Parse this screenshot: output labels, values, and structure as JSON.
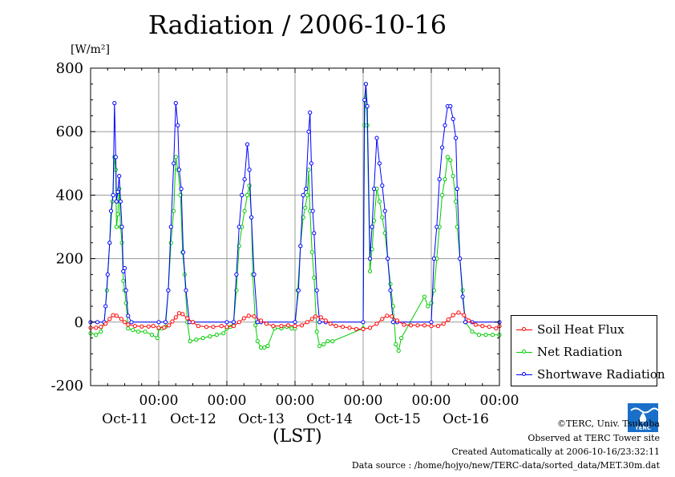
{
  "chart_data": {
    "type": "line",
    "title": "Radiation / 2006-10-16",
    "ylabel": "[W/m²]",
    "xlabel": "(LST)",
    "ylim": [
      -200,
      800
    ],
    "xlim": [
      0,
      6
    ],
    "y_ticks": [
      "800",
      "600",
      "400",
      "200",
      "0",
      "-200"
    ],
    "y_tick_values": [
      800,
      600,
      400,
      200,
      0,
      -200
    ],
    "x_ticks": [
      {
        "x": 1.0,
        "time": "00:00",
        "date": "Oct-11"
      },
      {
        "x": 2.0,
        "time": "00:00",
        "date": "Oct-12"
      },
      {
        "x": 3.0,
        "time": "00:00",
        "date": "Oct-13"
      },
      {
        "x": 4.0,
        "time": "00:00",
        "date": "Oct-14"
      },
      {
        "x": 5.0,
        "time": "00:00",
        "date": "Oct-15"
      },
      {
        "x": 6.0,
        "time": "00:00",
        "date": "Oct-16"
      }
    ],
    "grid": true,
    "legend_position": "bottom-right",
    "series": [
      {
        "name": "Soil Heat Flux",
        "color": "#ff0000",
        "data": [
          [
            0.0,
            -18
          ],
          [
            0.08,
            -18
          ],
          [
            0.15,
            -15
          ],
          [
            0.22,
            -5
          ],
          [
            0.28,
            10
          ],
          [
            0.33,
            22
          ],
          [
            0.38,
            20
          ],
          [
            0.45,
            10
          ],
          [
            0.5,
            0
          ],
          [
            0.55,
            -8
          ],
          [
            0.65,
            -12
          ],
          [
            0.75,
            -14
          ],
          [
            0.85,
            -14
          ],
          [
            0.92,
            -12
          ],
          [
            1.0,
            -18
          ],
          [
            1.08,
            -17
          ],
          [
            1.15,
            -10
          ],
          [
            1.2,
            2
          ],
          [
            1.25,
            15
          ],
          [
            1.3,
            28
          ],
          [
            1.35,
            25
          ],
          [
            1.42,
            12
          ],
          [
            1.5,
            0
          ],
          [
            1.58,
            -12
          ],
          [
            1.7,
            -15
          ],
          [
            1.8,
            -15
          ],
          [
            1.92,
            -12
          ],
          [
            2.0,
            -15
          ],
          [
            2.1,
            -12
          ],
          [
            2.18,
            0
          ],
          [
            2.25,
            12
          ],
          [
            2.32,
            20
          ],
          [
            2.4,
            18
          ],
          [
            2.5,
            5
          ],
          [
            2.58,
            -5
          ],
          [
            2.68,
            -12
          ],
          [
            2.8,
            -12
          ],
          [
            2.9,
            -10
          ],
          [
            3.0,
            -12
          ],
          [
            3.1,
            -10
          ],
          [
            3.18,
            0
          ],
          [
            3.25,
            10
          ],
          [
            3.3,
            18
          ],
          [
            3.38,
            15
          ],
          [
            3.45,
            5
          ],
          [
            3.52,
            -5
          ],
          [
            3.6,
            -12
          ],
          [
            3.7,
            -15
          ],
          [
            3.8,
            -18
          ],
          [
            3.9,
            -22
          ],
          [
            4.0,
            -22
          ],
          [
            4.1,
            -18
          ],
          [
            4.2,
            -5
          ],
          [
            4.28,
            10
          ],
          [
            4.35,
            20
          ],
          [
            4.42,
            18
          ],
          [
            4.5,
            5
          ],
          [
            4.6,
            -8
          ],
          [
            4.7,
            -10
          ],
          [
            4.8,
            -10
          ],
          [
            4.9,
            -10
          ],
          [
            5.0,
            -12
          ],
          [
            5.1,
            -12
          ],
          [
            5.18,
            -5
          ],
          [
            5.25,
            8
          ],
          [
            5.32,
            22
          ],
          [
            5.4,
            30
          ],
          [
            5.48,
            22
          ],
          [
            5.55,
            5
          ],
          [
            5.65,
            -8
          ],
          [
            5.75,
            -12
          ],
          [
            5.85,
            -15
          ],
          [
            5.95,
            -20
          ],
          [
            6.0,
            -12
          ]
        ]
      },
      {
        "name": "Net Radiation",
        "color": "#00cc00",
        "data": [
          [
            0.0,
            -35
          ],
          [
            0.08,
            -40
          ],
          [
            0.15,
            -30
          ],
          [
            0.2,
            0
          ],
          [
            0.24,
            100
          ],
          [
            0.28,
            250
          ],
          [
            0.32,
            380
          ],
          [
            0.35,
            520
          ],
          [
            0.37,
            480
          ],
          [
            0.38,
            300
          ],
          [
            0.4,
            340
          ],
          [
            0.42,
            420
          ],
          [
            0.44,
            300
          ],
          [
            0.46,
            250
          ],
          [
            0.48,
            130
          ],
          [
            0.5,
            100
          ],
          [
            0.52,
            60
          ],
          [
            0.55,
            -20
          ],
          [
            0.62,
            -25
          ],
          [
            0.7,
            -30
          ],
          [
            0.8,
            -30
          ],
          [
            0.9,
            -40
          ],
          [
            0.98,
            -50
          ],
          [
            1.0,
            -20
          ],
          [
            1.05,
            -20
          ],
          [
            1.1,
            -15
          ],
          [
            1.14,
            100
          ],
          [
            1.18,
            250
          ],
          [
            1.22,
            350
          ],
          [
            1.25,
            520
          ],
          [
            1.28,
            480
          ],
          [
            1.32,
            400
          ],
          [
            1.35,
            220
          ],
          [
            1.38,
            150
          ],
          [
            1.42,
            0
          ],
          [
            1.46,
            -60
          ],
          [
            1.55,
            -55
          ],
          [
            1.65,
            -50
          ],
          [
            1.75,
            -45
          ],
          [
            1.85,
            -40
          ],
          [
            1.95,
            -35
          ],
          [
            2.0,
            -20
          ],
          [
            2.05,
            -15
          ],
          [
            2.1,
            0
          ],
          [
            2.14,
            100
          ],
          [
            2.18,
            240
          ],
          [
            2.22,
            300
          ],
          [
            2.26,
            350
          ],
          [
            2.3,
            400
          ],
          [
            2.33,
            430
          ],
          [
            2.36,
            330
          ],
          [
            2.38,
            150
          ],
          [
            2.42,
            -10
          ],
          [
            2.45,
            -60
          ],
          [
            2.5,
            -80
          ],
          [
            2.55,
            -80
          ],
          [
            2.6,
            -75
          ],
          [
            2.7,
            -20
          ],
          [
            2.8,
            -20
          ],
          [
            2.88,
            -15
          ],
          [
            2.95,
            -20
          ],
          [
            3.0,
            -20
          ],
          [
            3.04,
            100
          ],
          [
            3.08,
            240
          ],
          [
            3.12,
            330
          ],
          [
            3.15,
            360
          ],
          [
            3.18,
            400
          ],
          [
            3.2,
            480
          ],
          [
            3.22,
            350
          ],
          [
            3.25,
            220
          ],
          [
            3.28,
            140
          ],
          [
            3.32,
            -30
          ],
          [
            3.36,
            -75
          ],
          [
            3.42,
            -70
          ],
          [
            3.48,
            -60
          ],
          [
            3.55,
            -60
          ],
          [
            4.0,
            -20
          ],
          [
            4.02,
            620
          ],
          [
            4.04,
            750
          ],
          [
            4.06,
            620
          ],
          [
            4.1,
            160
          ],
          [
            4.13,
            230
          ],
          [
            4.16,
            320
          ],
          [
            4.2,
            420
          ],
          [
            4.24,
            380
          ],
          [
            4.28,
            330
          ],
          [
            4.32,
            280
          ],
          [
            4.36,
            200
          ],
          [
            4.4,
            120
          ],
          [
            4.44,
            50
          ],
          [
            4.48,
            -70
          ],
          [
            4.52,
            -90
          ],
          [
            4.56,
            -50
          ],
          [
            4.9,
            80
          ],
          [
            4.95,
            50
          ],
          [
            5.0,
            60
          ],
          [
            5.04,
            100
          ],
          [
            5.08,
            200
          ],
          [
            5.12,
            300
          ],
          [
            5.16,
            400
          ],
          [
            5.2,
            450
          ],
          [
            5.24,
            520
          ],
          [
            5.28,
            510
          ],
          [
            5.32,
            460
          ],
          [
            5.36,
            380
          ],
          [
            5.38,
            300
          ],
          [
            5.42,
            200
          ],
          [
            5.46,
            100
          ],
          [
            5.5,
            0
          ],
          [
            5.6,
            -30
          ],
          [
            5.7,
            -40
          ],
          [
            5.8,
            -40
          ],
          [
            5.9,
            -40
          ],
          [
            6.0,
            -40
          ]
        ]
      },
      {
        "name": "Shortwave Radiation",
        "color": "#0000ff",
        "data": [
          [
            0.0,
            0
          ],
          [
            0.1,
            0
          ],
          [
            0.2,
            0
          ],
          [
            0.22,
            50
          ],
          [
            0.25,
            150
          ],
          [
            0.28,
            250
          ],
          [
            0.3,
            350
          ],
          [
            0.33,
            400
          ],
          [
            0.35,
            690
          ],
          [
            0.37,
            520
          ],
          [
            0.38,
            380
          ],
          [
            0.4,
            410
          ],
          [
            0.42,
            460
          ],
          [
            0.44,
            380
          ],
          [
            0.46,
            300
          ],
          [
            0.48,
            160
          ],
          [
            0.5,
            170
          ],
          [
            0.52,
            100
          ],
          [
            0.55,
            20
          ],
          [
            0.6,
            0
          ],
          [
            1.0,
            0
          ],
          [
            1.1,
            0
          ],
          [
            1.14,
            100
          ],
          [
            1.18,
            300
          ],
          [
            1.22,
            500
          ],
          [
            1.25,
            690
          ],
          [
            1.28,
            620
          ],
          [
            1.3,
            480
          ],
          [
            1.33,
            420
          ],
          [
            1.36,
            220
          ],
          [
            1.4,
            100
          ],
          [
            1.45,
            0
          ],
          [
            1.5,
            0
          ],
          [
            2.0,
            0
          ],
          [
            2.1,
            0
          ],
          [
            2.14,
            150
          ],
          [
            2.18,
            300
          ],
          [
            2.22,
            400
          ],
          [
            2.26,
            450
          ],
          [
            2.3,
            560
          ],
          [
            2.33,
            480
          ],
          [
            2.36,
            330
          ],
          [
            2.4,
            150
          ],
          [
            2.45,
            0
          ],
          [
            2.5,
            0
          ],
          [
            3.0,
            0
          ],
          [
            3.05,
            100
          ],
          [
            3.08,
            240
          ],
          [
            3.12,
            400
          ],
          [
            3.16,
            420
          ],
          [
            3.2,
            600
          ],
          [
            3.22,
            660
          ],
          [
            3.24,
            500
          ],
          [
            3.26,
            350
          ],
          [
            3.28,
            280
          ],
          [
            3.32,
            100
          ],
          [
            3.36,
            0
          ],
          [
            3.45,
            0
          ],
          [
            4.0,
            0
          ],
          [
            4.02,
            700
          ],
          [
            4.04,
            750
          ],
          [
            4.06,
            680
          ],
          [
            4.1,
            200
          ],
          [
            4.13,
            300
          ],
          [
            4.16,
            420
          ],
          [
            4.2,
            580
          ],
          [
            4.24,
            500
          ],
          [
            4.28,
            430
          ],
          [
            4.32,
            350
          ],
          [
            4.36,
            200
          ],
          [
            4.4,
            100
          ],
          [
            4.44,
            0
          ],
          [
            4.5,
            0
          ],
          [
            5.0,
            0
          ],
          [
            5.04,
            200
          ],
          [
            5.08,
            300
          ],
          [
            5.12,
            450
          ],
          [
            5.16,
            550
          ],
          [
            5.2,
            620
          ],
          [
            5.24,
            680
          ],
          [
            5.28,
            680
          ],
          [
            5.32,
            640
          ],
          [
            5.36,
            580
          ],
          [
            5.38,
            420
          ],
          [
            5.42,
            200
          ],
          [
            5.46,
            80
          ],
          [
            5.5,
            0
          ],
          [
            5.6,
            0
          ],
          [
            6.0,
            0
          ]
        ]
      }
    ]
  },
  "footer": {
    "copyright": "©TERC, Univ. Tsukuba",
    "observed": "Observed at TERC Tower site",
    "created": "Created Automatically at 2006-10-16/23:32:11",
    "source": "Data source : /home/hojyo/new/TERC-data/sorted_data/MET.30m.dat"
  },
  "logo": {
    "text": "TERC",
    "color": "#1a6fc9"
  }
}
